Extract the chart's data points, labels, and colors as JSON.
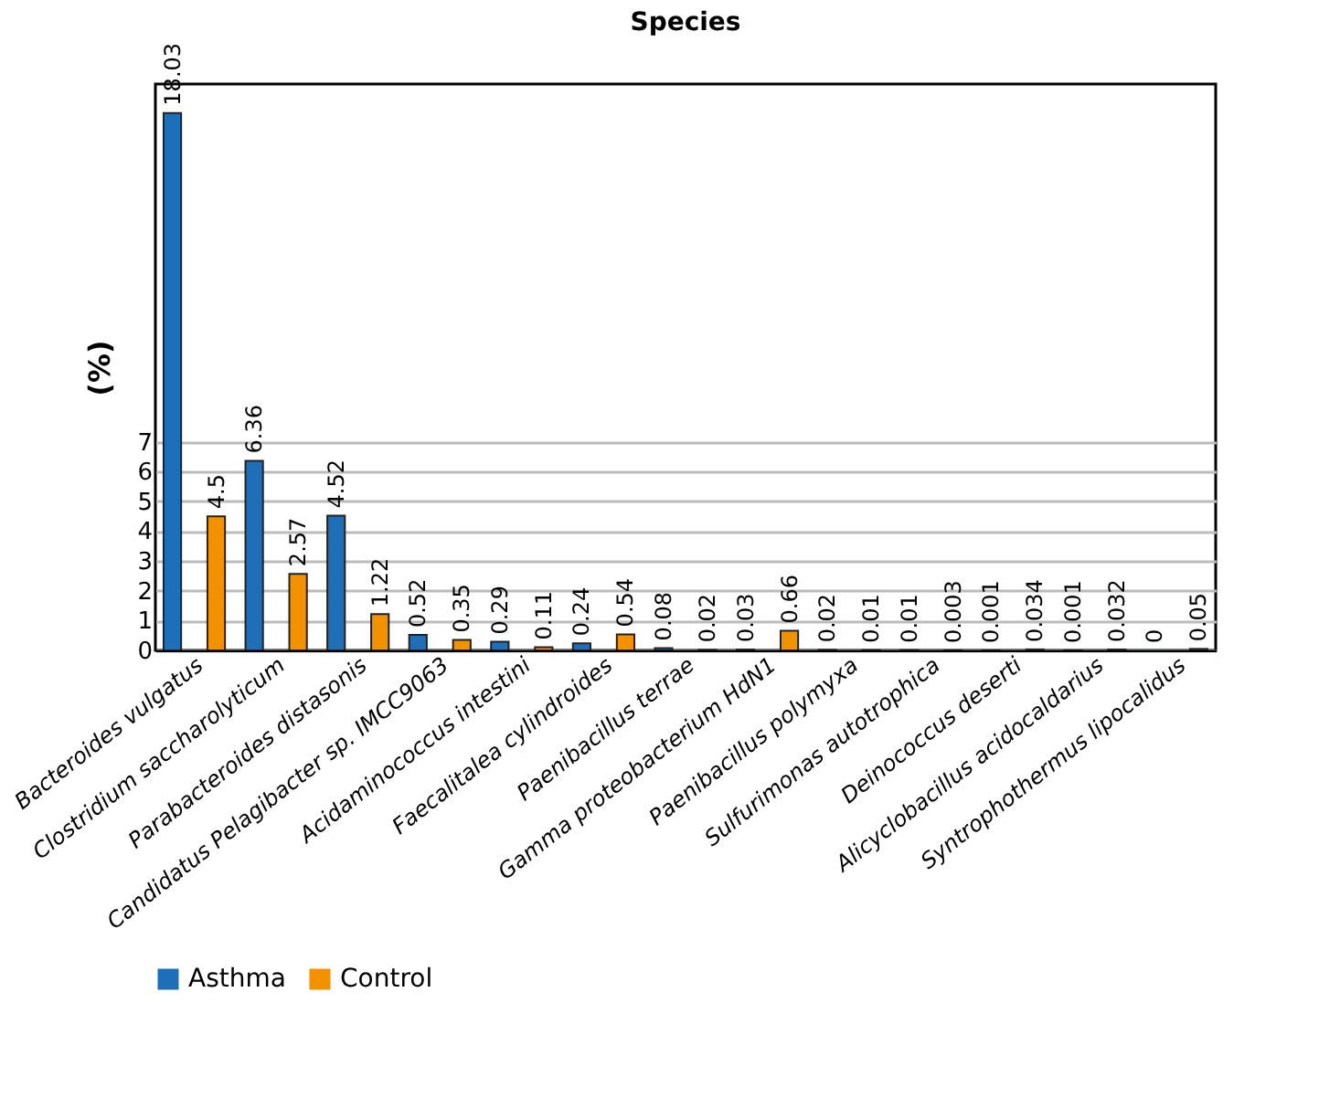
{
  "chart_data": {
    "type": "bar",
    "title": "Species",
    "ylabel": "(%)",
    "categories": [
      "Bacteroides vulgatus",
      "Clostridium saccharolyticum",
      "Parabacteroides distasonis",
      "Candidatus Pelagibacter sp. IMCC9063",
      "Acidaminococcus intestini",
      "Faecalitalea cylindroides",
      "Paenibacillus terrae",
      "Gamma proteobacterium HdN1",
      "Paenibacillus polymyxa",
      "Sulfurimonas autotrophica",
      "Deinococcus deserti",
      "Alicyclobacillus acidocaldarius",
      "Syntrophothermus lipocalidus"
    ],
    "series": [
      {
        "name": "Asthma",
        "color": "#1f6fb8",
        "values": [
          18.03,
          6.36,
          4.52,
          0.52,
          0.29,
          0.24,
          0.08,
          0.03,
          0.02,
          0.01,
          0.001,
          0.001,
          0
        ]
      },
      {
        "name": "Control",
        "color": "#f39200",
        "values": [
          4.5,
          2.57,
          1.22,
          0.35,
          0.11,
          0.54,
          0.02,
          0.66,
          0.01,
          0.003,
          0.034,
          0.032,
          0.05
        ]
      }
    ],
    "ylim": [
      0,
      19
    ],
    "yticks": [
      0,
      1,
      2,
      3,
      4,
      5,
      6,
      7
    ],
    "grid": "y",
    "legend": "bottom",
    "data_labels": true
  }
}
